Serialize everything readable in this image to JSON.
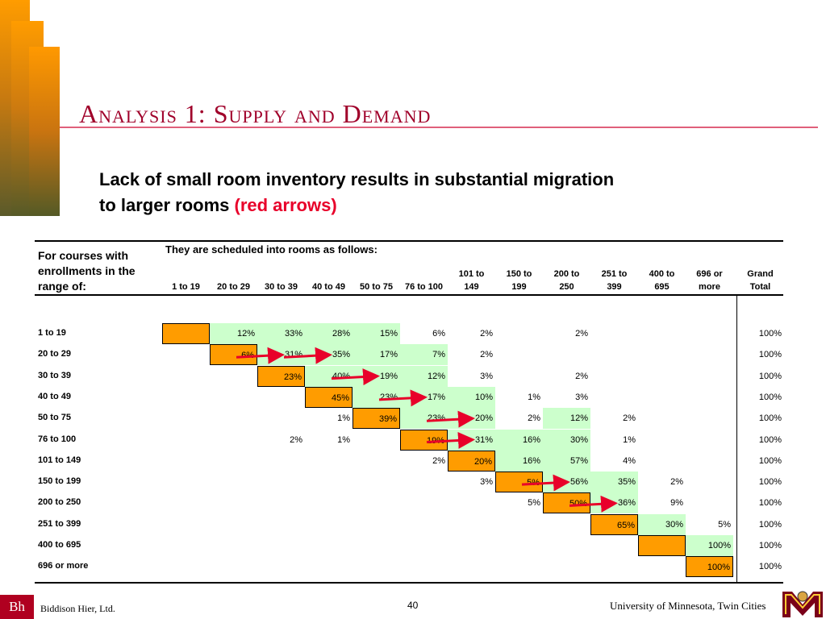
{
  "slide": {
    "title": "Analysis 1:  Supply and Demand",
    "subtitle_line1": "Lack of small room inventory results in substantial migration",
    "subtitle_line2": "to larger rooms",
    "subtitle_highlight": "(red arrows)"
  },
  "table": {
    "left_header": "For courses with enrollments in the range of:",
    "top_header": "They are scheduled into rooms as follows:",
    "columns": [
      "1 to 19",
      "20 to 29",
      "30 to 39",
      "40 to 49",
      "50 to 75",
      "76 to 100",
      "101 to 149",
      "150 to 199",
      "200 to 250",
      "251 to 399",
      "400 to 695",
      "696 or more",
      "Grand Total"
    ],
    "rows": [
      {
        "label": "1 to 19",
        "cells": [
          "",
          "12%",
          "33%",
          "28%",
          "15%",
          "6%",
          "2%",
          "",
          "2%",
          "",
          "",
          "",
          "100%"
        ],
        "orange": [
          0
        ],
        "green": [
          1,
          2,
          3,
          4
        ]
      },
      {
        "label": "20 to 29",
        "cells": [
          "",
          "6%",
          "31%",
          "35%",
          "17%",
          "7%",
          "2%",
          "",
          "",
          "",
          "",
          "",
          "100%"
        ],
        "orange": [
          1
        ],
        "green": [
          2,
          3,
          4,
          5
        ]
      },
      {
        "label": "30 to 39",
        "cells": [
          "",
          "",
          "23%",
          "40%",
          "19%",
          "12%",
          "3%",
          "",
          "2%",
          "",
          "",
          "",
          "100%"
        ],
        "orange": [
          2
        ],
        "green": [
          3,
          4,
          5
        ]
      },
      {
        "label": "40 to 49",
        "cells": [
          "",
          "",
          "",
          "45%",
          "23%",
          "17%",
          "10%",
          "1%",
          "3%",
          "",
          "",
          "",
          "100%"
        ],
        "orange": [
          3
        ],
        "green": [
          4,
          5,
          6
        ]
      },
      {
        "label": "50 to 75",
        "cells": [
          "",
          "",
          "",
          "1%",
          "39%",
          "23%",
          "20%",
          "2%",
          "12%",
          "2%",
          "",
          "",
          "100%"
        ],
        "orange": [
          4
        ],
        "green": [
          5,
          6,
          8
        ]
      },
      {
        "label": "76 to 100",
        "cells": [
          "",
          "",
          "2%",
          "1%",
          "",
          "19%",
          "31%",
          "16%",
          "30%",
          "1%",
          "",
          "",
          "100%"
        ],
        "orange": [
          5
        ],
        "green": [
          6,
          7,
          8
        ]
      },
      {
        "label": "101 to 149",
        "cells": [
          "",
          "",
          "",
          "",
          "",
          "2%",
          "20%",
          "16%",
          "57%",
          "4%",
          "",
          "",
          "100%"
        ],
        "orange": [
          6
        ],
        "green": [
          7,
          8
        ]
      },
      {
        "label": "150 to 199",
        "cells": [
          "",
          "",
          "",
          "",
          "",
          "",
          "3%",
          "5%",
          "56%",
          "35%",
          "2%",
          "",
          "100%"
        ],
        "orange": [
          7
        ],
        "green": [
          8,
          9
        ]
      },
      {
        "label": "200 to 250",
        "cells": [
          "",
          "",
          "",
          "",
          "",
          "",
          "",
          "5%",
          "50%",
          "36%",
          "9%",
          "",
          "100%"
        ],
        "orange": [
          8
        ],
        "green": [
          9
        ]
      },
      {
        "label": "251 to 399",
        "cells": [
          "",
          "",
          "",
          "",
          "",
          "",
          "",
          "",
          "",
          "65%",
          "30%",
          "5%",
          "100%"
        ],
        "orange": [
          9
        ],
        "green": [
          10
        ]
      },
      {
        "label": "400 to 695",
        "cells": [
          "",
          "",
          "",
          "",
          "",
          "",
          "",
          "",
          "",
          "",
          "",
          "100%",
          "100%"
        ],
        "orange": [
          10
        ],
        "green": [
          11
        ]
      },
      {
        "label": "696 or more",
        "cells": [
          "",
          "",
          "",
          "",
          "",
          "",
          "",
          "",
          "",
          "",
          "",
          "100%",
          "100%"
        ],
        "orange": [
          11
        ],
        "green": []
      }
    ],
    "arrows": [
      {
        "row": 1,
        "from": 1,
        "to": 2
      },
      {
        "row": 1,
        "from": 2,
        "to": 3
      },
      {
        "row": 2,
        "from": 3,
        "to": 4
      },
      {
        "row": 3,
        "from": 4,
        "to": 5
      },
      {
        "row": 4,
        "from": 5,
        "to": 6
      },
      {
        "row": 5,
        "from": 5,
        "to": 6
      },
      {
        "row": 7,
        "from": 7,
        "to": 8
      },
      {
        "row": 8,
        "from": 8,
        "to": 9
      }
    ]
  },
  "colors": {
    "orange": "#ff9c00",
    "green": "#ccffcc",
    "arrow": "#e8002a"
  },
  "footer": {
    "logo": "Bh",
    "company": "Biddison Hier, Ltd.",
    "page": "40",
    "university": "University of Minnesota, Twin Cities"
  }
}
